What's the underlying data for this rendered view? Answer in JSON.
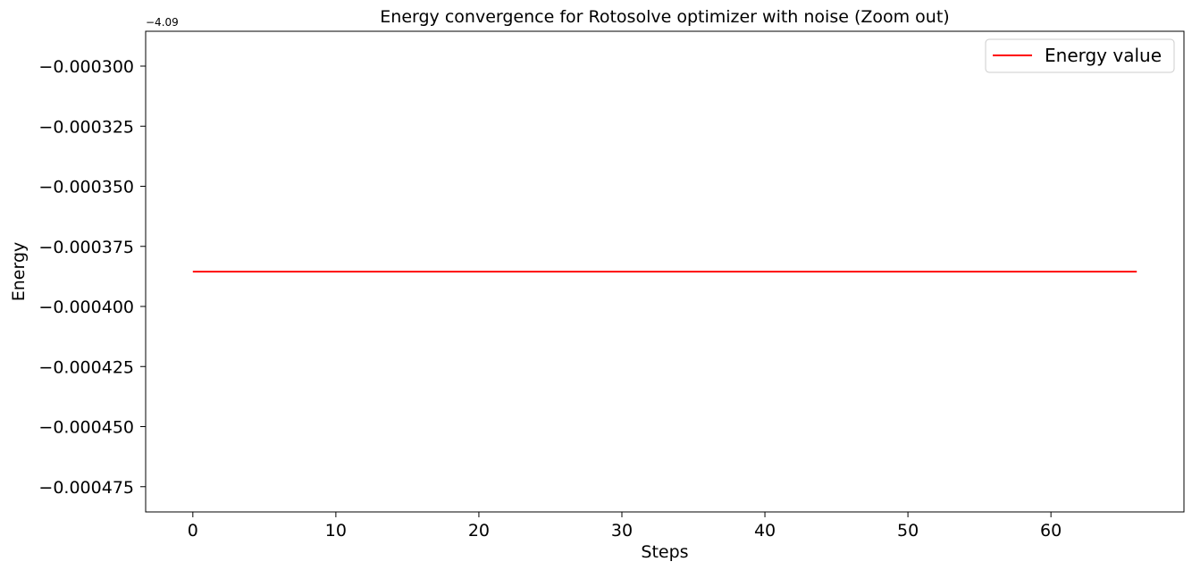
{
  "chart_data": {
    "type": "line",
    "title": "Energy convergence for Rotosolve optimizer with noise (Zoom out)",
    "xlabel": "Steps",
    "ylabel": "Energy",
    "y_offset_label": "−4.09",
    "x_ticks": [
      0,
      10,
      20,
      30,
      40,
      50,
      60
    ],
    "x_tick_labels": [
      "0",
      "10",
      "20",
      "30",
      "40",
      "50",
      "60"
    ],
    "y_ticks": [
      -0.0003,
      -0.000325,
      -0.00035,
      -0.000375,
      -0.0004,
      -0.000425,
      -0.00045,
      -0.000475
    ],
    "y_tick_labels": [
      "−0.000300",
      "−0.000325",
      "−0.000350",
      "−0.000375",
      "−0.000400",
      "−0.000425",
      "−0.000450",
      "−0.000475"
    ],
    "xlim": [
      -3.3,
      69.3
    ],
    "ylim": [
      -0.0004855,
      -0.0002855
    ],
    "series": [
      {
        "name": "Energy value",
        "color": "#ff0000",
        "x": [
          0,
          66
        ],
        "y": [
          -0.0003855,
          -0.0003855
        ]
      }
    ],
    "legend": {
      "entries": [
        "Energy value"
      ],
      "placement": "top-right"
    },
    "grid": false
  }
}
